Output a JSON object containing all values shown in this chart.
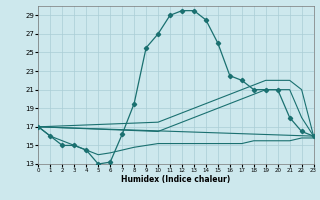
{
  "xlabel": "Humidex (Indice chaleur)",
  "bg_color": "#cde8ed",
  "grid_color": "#aacdd5",
  "line_color": "#1a7070",
  "xlim": [
    0,
    23
  ],
  "ylim": [
    13,
    30
  ],
  "yticks": [
    13,
    15,
    17,
    19,
    21,
    23,
    25,
    27,
    29
  ],
  "xticks": [
    0,
    1,
    2,
    3,
    4,
    5,
    6,
    7,
    8,
    9,
    10,
    11,
    12,
    13,
    14,
    15,
    16,
    17,
    18,
    19,
    20,
    21,
    22,
    23
  ],
  "curve1_x": [
    0,
    1,
    2,
    3,
    4,
    5,
    6,
    7,
    8,
    9,
    10,
    11,
    12,
    13,
    14,
    15,
    16,
    17,
    18,
    19,
    20,
    21,
    22,
    23
  ],
  "curve1_y": [
    17,
    16,
    15,
    15,
    14.5,
    13,
    13.2,
    16.2,
    19.5,
    25.5,
    27,
    29,
    29.5,
    29.5,
    28.5,
    26,
    22.5,
    22,
    21,
    21,
    21,
    18,
    16.5,
    16
  ],
  "curve2_x": [
    0,
    23
  ],
  "curve2_y": [
    17,
    16
  ],
  "curve3_x": [
    0,
    10,
    11,
    12,
    13,
    14,
    15,
    16,
    17,
    18,
    19,
    20,
    21,
    22,
    23
  ],
  "curve3_y": [
    17,
    17.5,
    18,
    18.5,
    19,
    19.5,
    20,
    20.5,
    21,
    21.5,
    22,
    22,
    22,
    21,
    16
  ],
  "curve4_x": [
    0,
    10,
    11,
    12,
    13,
    14,
    15,
    16,
    17,
    18,
    19,
    20,
    21,
    22,
    23
  ],
  "curve4_y": [
    17,
    16.5,
    17,
    17.5,
    18,
    18.5,
    19,
    19.5,
    20,
    20.5,
    21,
    21,
    21,
    18,
    16
  ],
  "curve5_x": [
    0,
    1,
    2,
    3,
    4,
    5,
    6,
    7,
    8,
    9,
    10,
    11,
    12,
    13,
    14,
    15,
    16,
    17,
    18,
    19,
    20,
    21,
    22,
    23
  ],
  "curve5_y": [
    17,
    16,
    15.5,
    15,
    14.5,
    14,
    14.2,
    14.5,
    14.8,
    15,
    15.2,
    15.2,
    15.2,
    15.2,
    15.2,
    15.2,
    15.2,
    15.2,
    15.5,
    15.5,
    15.5,
    15.5,
    15.8,
    15.8
  ]
}
